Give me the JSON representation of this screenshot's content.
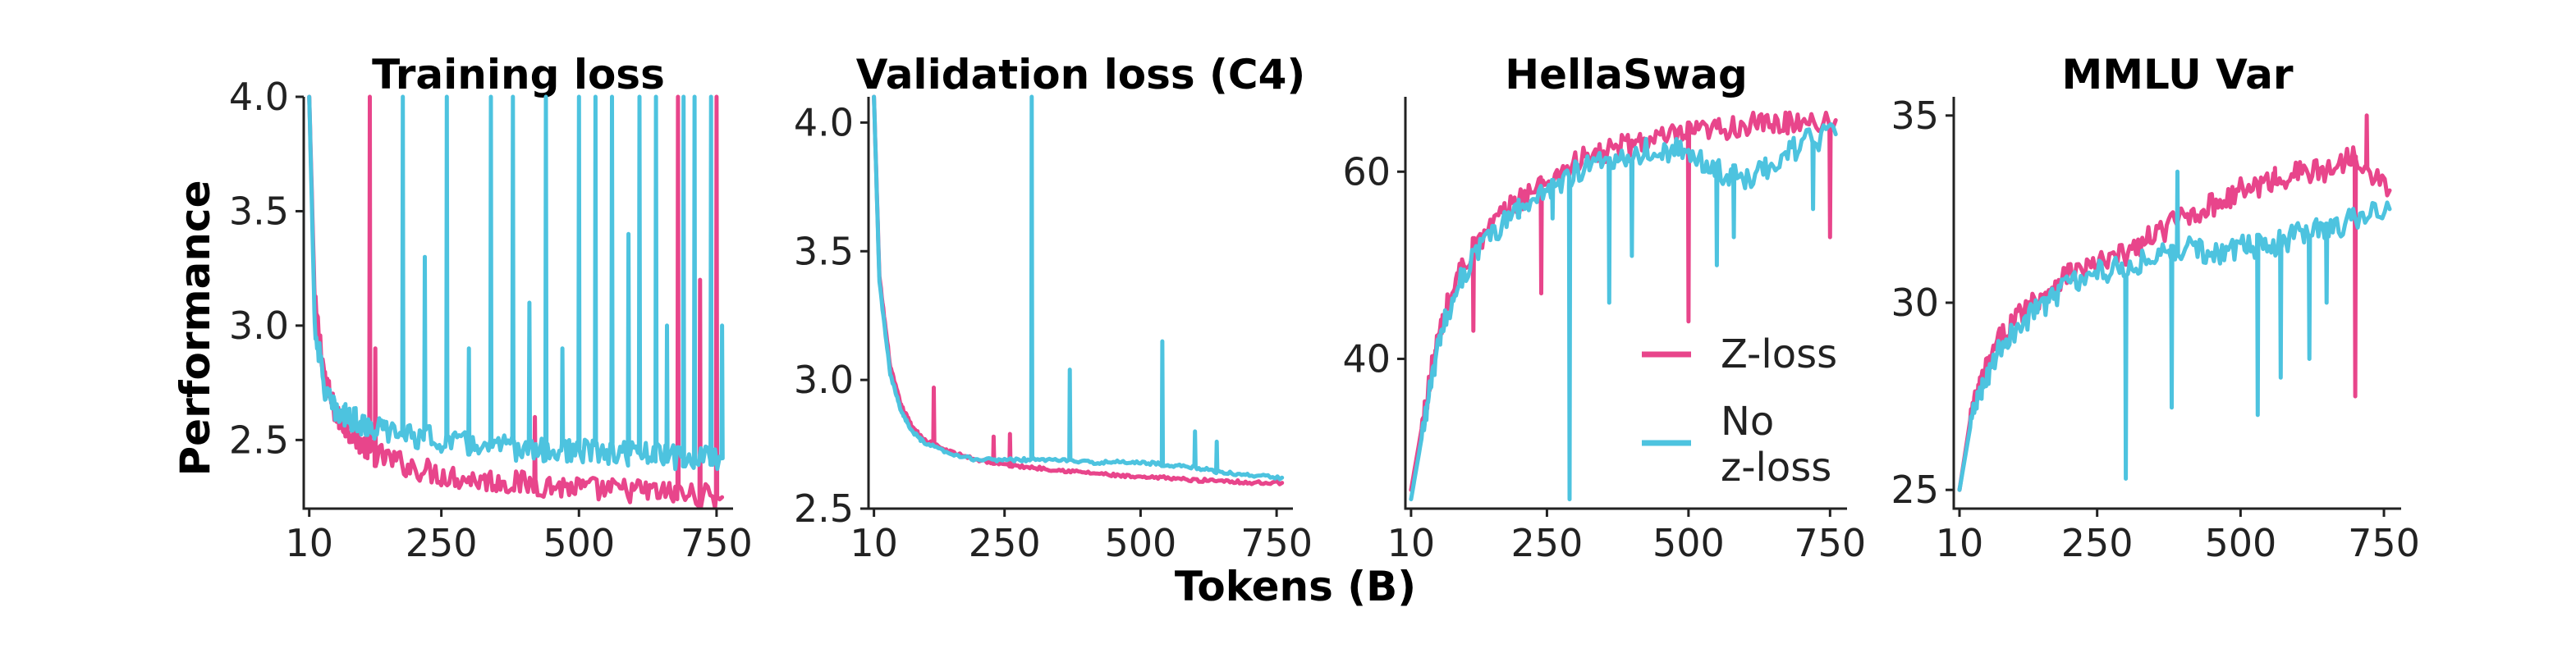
{
  "figure": {
    "shared_xlabel": "Tokens (B)",
    "shared_ylabel": "Performance"
  },
  "colors": {
    "zloss": "#E8458B",
    "nozloss": "#4DC3DF"
  },
  "legend": {
    "items": [
      "Z-loss",
      "No\nz-loss"
    ]
  },
  "chart_data": [
    {
      "type": "line",
      "title": "Training loss",
      "xlabel": "Tokens (B)",
      "ylabel": "Performance",
      "xlim": [
        0,
        780
      ],
      "ylim": [
        2.2,
        4.0
      ],
      "xticks": [
        10,
        250,
        500,
        750
      ],
      "xtick_labels": [
        "10",
        "250",
        "500",
        "750"
      ],
      "yticks": [
        2.5,
        3.0,
        3.5,
        4.0
      ],
      "ytick_labels": [
        "2.5",
        "3.0",
        "3.5",
        "4.0"
      ],
      "series": [
        {
          "name": "Z-loss",
          "x": [
            10,
            20,
            40,
            60,
            80,
            100,
            120,
            150,
            200,
            250,
            300,
            350,
            400,
            450,
            500,
            550,
            600,
            650,
            700,
            760
          ],
          "y": [
            4.0,
            3.1,
            2.75,
            2.6,
            2.55,
            2.5,
            2.45,
            2.42,
            2.38,
            2.35,
            2.33,
            2.32,
            2.31,
            2.3,
            2.29,
            2.28,
            2.28,
            2.27,
            2.26,
            2.25
          ],
          "spikes": [
            [
              120,
              4.0
            ],
            [
              130,
              2.9
            ],
            [
              420,
              2.6
            ],
            [
              680,
              4.0
            ],
            [
              720,
              3.2
            ],
            [
              750,
              4.0
            ]
          ]
        },
        {
          "name": "No z-loss",
          "x": [
            10,
            20,
            40,
            60,
            80,
            100,
            120,
            150,
            200,
            250,
            300,
            350,
            400,
            450,
            500,
            550,
            600,
            650,
            700,
            760
          ],
          "y": [
            4.0,
            3.0,
            2.7,
            2.62,
            2.6,
            2.58,
            2.56,
            2.54,
            2.52,
            2.5,
            2.48,
            2.47,
            2.46,
            2.45,
            2.45,
            2.44,
            2.44,
            2.43,
            2.42,
            2.42
          ],
          "spikes": [
            [
              180,
              4.0
            ],
            [
              220,
              3.3
            ],
            [
              260,
              4.0
            ],
            [
              300,
              2.9
            ],
            [
              340,
              4.0
            ],
            [
              380,
              4.0
            ],
            [
              410,
              3.1
            ],
            [
              440,
              4.0
            ],
            [
              470,
              2.9
            ],
            [
              500,
              4.0
            ],
            [
              530,
              4.0
            ],
            [
              560,
              4.0
            ],
            [
              590,
              3.4
            ],
            [
              610,
              4.0
            ],
            [
              640,
              4.0
            ],
            [
              660,
              3.0
            ],
            [
              690,
              4.0
            ],
            [
              710,
              4.0
            ],
            [
              740,
              4.0
            ],
            [
              760,
              3.0
            ]
          ]
        }
      ]
    },
    {
      "type": "line",
      "title": "Validation loss (C4)",
      "xlabel": "Tokens (B)",
      "ylabel": "",
      "xlim": [
        0,
        780
      ],
      "ylim": [
        2.5,
        4.1
      ],
      "xticks": [
        10,
        250,
        500,
        750
      ],
      "xtick_labels": [
        "10",
        "250",
        "500",
        "750"
      ],
      "yticks": [
        2.5,
        3.0,
        3.5,
        4.0
      ],
      "ytick_labels": [
        "2.5",
        "3.0",
        "3.5",
        "4.0"
      ],
      "series": [
        {
          "name": "Z-loss",
          "x": [
            10,
            20,
            40,
            60,
            80,
            100,
            150,
            200,
            250,
            300,
            350,
            400,
            450,
            500,
            550,
            600,
            650,
            700,
            760
          ],
          "y": [
            4.1,
            3.4,
            3.05,
            2.9,
            2.82,
            2.77,
            2.72,
            2.69,
            2.67,
            2.66,
            2.65,
            2.64,
            2.63,
            2.62,
            2.62,
            2.61,
            2.61,
            2.6,
            2.6
          ],
          "spikes": [
            [
              120,
              2.97
            ],
            [
              230,
              2.78
            ],
            [
              260,
              2.79
            ]
          ]
        },
        {
          "name": "No z-loss",
          "x": [
            10,
            20,
            40,
            60,
            80,
            100,
            150,
            200,
            250,
            300,
            350,
            400,
            450,
            500,
            550,
            600,
            650,
            700,
            760
          ],
          "y": [
            4.1,
            3.38,
            3.02,
            2.88,
            2.8,
            2.76,
            2.71,
            2.69,
            2.69,
            2.69,
            2.69,
            2.68,
            2.68,
            2.68,
            2.67,
            2.66,
            2.64,
            2.63,
            2.62
          ],
          "spikes": [
            [
              300,
              4.1
            ],
            [
              370,
              3.04
            ],
            [
              540,
              3.15
            ],
            [
              600,
              2.8
            ],
            [
              640,
              2.76
            ]
          ]
        }
      ]
    },
    {
      "type": "line",
      "title": "HellaSwag",
      "xlabel": "Tokens (B)",
      "ylabel": "",
      "xlim": [
        0,
        780
      ],
      "ylim": [
        24,
        68
      ],
      "xticks": [
        10,
        250,
        500,
        750
      ],
      "xtick_labels": [
        "10",
        "250",
        "500",
        "750"
      ],
      "yticks": [
        40,
        60
      ],
      "ytick_labels": [
        "40",
        "60"
      ],
      "series": [
        {
          "name": "Z-loss",
          "x": [
            10,
            30,
            50,
            70,
            100,
            150,
            200,
            250,
            300,
            350,
            400,
            450,
            500,
            550,
            600,
            650,
            700,
            760
          ],
          "y": [
            26,
            33,
            40,
            45,
            50,
            54,
            57,
            59,
            61,
            62,
            63,
            63.5,
            64,
            64.5,
            65,
            65,
            65.5,
            65.5
          ],
          "spikes": [
            [
              120,
              43
            ],
            [
              240,
              47
            ],
            [
              500,
              44
            ],
            [
              750,
              53
            ]
          ]
        },
        {
          "name": "No z-loss",
          "x": [
            10,
            30,
            50,
            70,
            100,
            150,
            200,
            250,
            300,
            350,
            400,
            450,
            500,
            550,
            600,
            650,
            700,
            760
          ],
          "y": [
            25,
            32,
            39,
            44,
            49,
            53,
            56,
            58,
            60,
            61,
            62,
            62.5,
            62,
            60,
            59,
            61,
            63,
            64
          ],
          "spikes": [
            [
              200,
              57
            ],
            [
              260,
              55
            ],
            [
              290,
              25
            ],
            [
              360,
              46
            ],
            [
              400,
              51
            ],
            [
              550,
              50
            ],
            [
              580,
              53
            ],
            [
              720,
              56
            ]
          ]
        }
      ]
    },
    {
      "type": "line",
      "title": "MMLU Var",
      "xlabel": "Tokens (B)",
      "ylabel": "",
      "xlim": [
        0,
        780
      ],
      "ylim": [
        24.5,
        35.5
      ],
      "xticks": [
        10,
        250,
        500,
        750
      ],
      "xtick_labels": [
        "10",
        "250",
        "500",
        "750"
      ],
      "yticks": [
        25,
        30,
        35
      ],
      "ytick_labels": [
        "25",
        "30",
        "35"
      ],
      "series": [
        {
          "name": "Z-loss",
          "x": [
            10,
            30,
            50,
            80,
            120,
            160,
            200,
            250,
            300,
            350,
            400,
            450,
            500,
            550,
            600,
            650,
            700,
            760
          ],
          "y": [
            25,
            27,
            28,
            29,
            29.8,
            30.3,
            30.8,
            31,
            31.3,
            31.8,
            32.3,
            32.6,
            33,
            33.2,
            33.5,
            33.5,
            34,
            33
          ],
          "spikes": [
            [
              700,
              27.5
            ],
            [
              720,
              35
            ],
            [
              560,
              33.6
            ]
          ]
        },
        {
          "name": "No z-loss",
          "x": [
            10,
            30,
            50,
            80,
            120,
            160,
            200,
            250,
            300,
            350,
            400,
            450,
            500,
            550,
            600,
            650,
            700,
            760
          ],
          "y": [
            25,
            26.8,
            27.8,
            28.8,
            29.5,
            30,
            30.5,
            30.8,
            31,
            31.2,
            31.5,
            31.3,
            31.5,
            31.5,
            31.8,
            32,
            32.2,
            32.5
          ],
          "spikes": [
            [
              300,
              25.3
            ],
            [
              380,
              27.2
            ],
            [
              390,
              33.5
            ],
            [
              530,
              27
            ],
            [
              570,
              28
            ],
            [
              620,
              28.5
            ],
            [
              650,
              30
            ]
          ]
        }
      ]
    }
  ]
}
